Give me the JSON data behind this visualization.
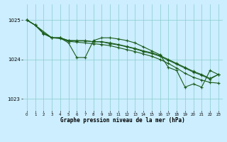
{
  "title": "Graphe pression niveau de la mer (hPa)",
  "background_color": "#cceeff",
  "grid_color": "#88cccc",
  "line_color": "#1a5c1a",
  "ylim": [
    1022.7,
    1025.4
  ],
  "xlim": [
    -0.5,
    23.5
  ],
  "yticks": [
    1023,
    1024,
    1025
  ],
  "xticks": [
    0,
    1,
    2,
    3,
    4,
    5,
    6,
    7,
    8,
    9,
    10,
    11,
    12,
    13,
    14,
    15,
    16,
    17,
    18,
    19,
    20,
    21,
    22,
    23
  ],
  "line1_x": [
    0,
    1,
    3,
    4,
    5,
    6,
    7,
    8,
    9,
    10,
    11,
    12,
    13,
    14,
    15,
    16,
    17,
    18,
    19,
    20,
    21,
    22,
    23
  ],
  "line1_y": [
    1025.0,
    1024.87,
    1024.55,
    1024.55,
    1024.42,
    1024.05,
    1024.05,
    1024.48,
    1024.55,
    1024.55,
    1024.52,
    1024.48,
    1024.42,
    1024.32,
    1024.22,
    1024.12,
    1023.8,
    1023.72,
    1023.3,
    1023.38,
    1023.3,
    1023.72,
    1023.62
  ],
  "line2_x": [
    0,
    1,
    2,
    3,
    4,
    5,
    6,
    7,
    8,
    9,
    10,
    11,
    12,
    13,
    14,
    15,
    16,
    17,
    18,
    19,
    20,
    21,
    22,
    23
  ],
  "line2_y": [
    1025.0,
    1024.87,
    1024.67,
    1024.55,
    1024.55,
    1024.48,
    1024.48,
    1024.48,
    1024.45,
    1024.45,
    1024.42,
    1024.38,
    1024.33,
    1024.28,
    1024.22,
    1024.17,
    1024.1,
    1024.0,
    1023.9,
    1023.8,
    1023.7,
    1023.62,
    1023.52,
    1023.62
  ],
  "line3_x": [
    0,
    1,
    2,
    3,
    4,
    5,
    6,
    7,
    8,
    9,
    10,
    11,
    12,
    13,
    14,
    15,
    16,
    17,
    18,
    19,
    20,
    21,
    22,
    23
  ],
  "line3_y": [
    1025.0,
    1024.87,
    1024.67,
    1024.55,
    1024.55,
    1024.48,
    1024.47,
    1024.47,
    1024.45,
    1024.45,
    1024.4,
    1024.37,
    1024.32,
    1024.27,
    1024.2,
    1024.15,
    1024.08,
    1023.98,
    1023.88,
    1023.78,
    1023.68,
    1023.6,
    1023.5,
    1023.62
  ],
  "line4_x": [
    0,
    1,
    2,
    3,
    4,
    5,
    6,
    7,
    8,
    9,
    10,
    11,
    12,
    13,
    14,
    15,
    16,
    17,
    18,
    19,
    20,
    21,
    22,
    23
  ],
  "line4_y": [
    1025.0,
    1024.87,
    1024.65,
    1024.55,
    1024.53,
    1024.46,
    1024.44,
    1024.42,
    1024.4,
    1024.38,
    1024.35,
    1024.3,
    1024.25,
    1024.2,
    1024.14,
    1024.08,
    1024.0,
    1023.9,
    1023.78,
    1023.65,
    1023.55,
    1023.48,
    1023.42,
    1023.4
  ]
}
